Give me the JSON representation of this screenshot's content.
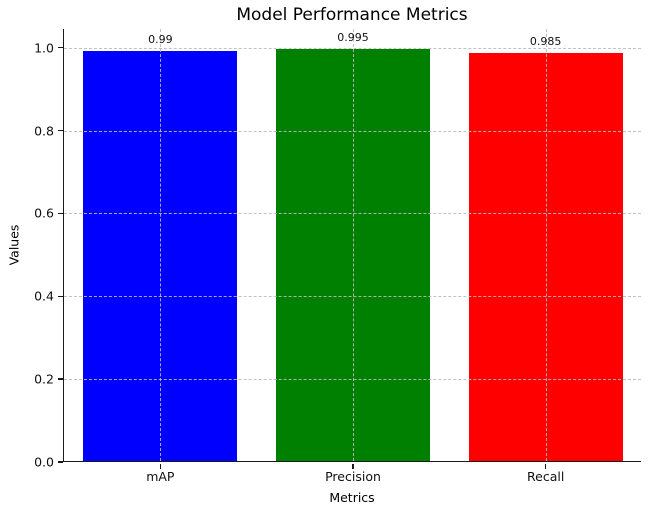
{
  "chart_data": {
    "type": "bar",
    "title": "Model Performance Metrics",
    "xlabel": "Metrics",
    "ylabel": "Values",
    "categories": [
      "mAP",
      "Precision",
      "Recall"
    ],
    "values": [
      0.99,
      0.995,
      0.985
    ],
    "value_labels": [
      "0.99",
      "0.995",
      "0.985"
    ],
    "bar_colors": [
      "#0000ff",
      "#008000",
      "#ff0000"
    ],
    "bar_width_fraction": 0.8,
    "ylim": [
      0,
      1.045
    ],
    "yticks": [
      0.0,
      0.2,
      0.4,
      0.6,
      0.8,
      1.0
    ],
    "ytick_labels": [
      "0.0",
      "0.2",
      "0.4",
      "0.6",
      "0.8",
      "1.0"
    ],
    "grid": true,
    "grid_linestyle": "dashed",
    "grid_color": "#bbbbbb",
    "grid_above_bars": true,
    "legend": "none",
    "axis_color": "#1a1a1a"
  }
}
